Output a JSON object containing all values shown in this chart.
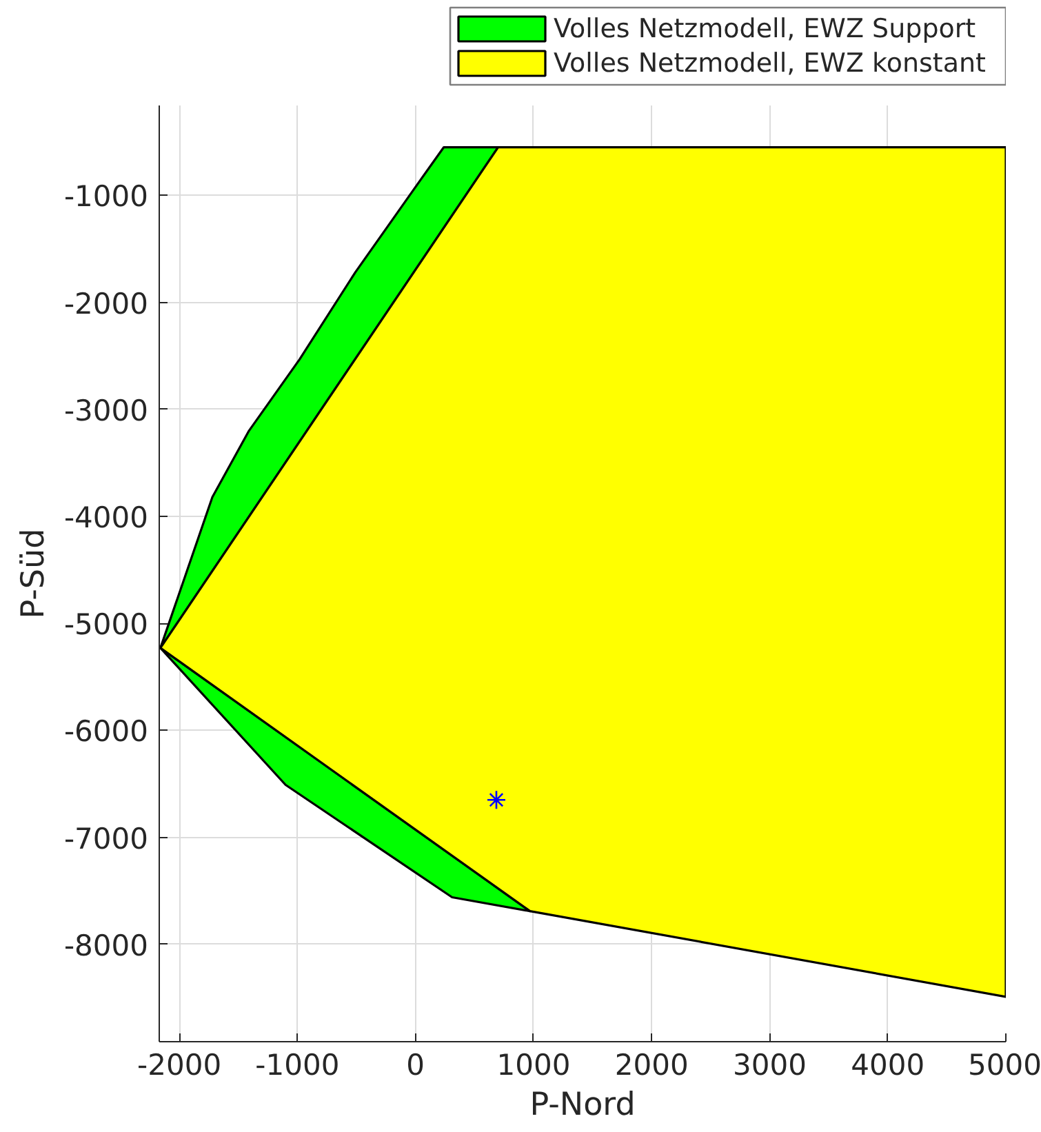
{
  "chart_data": {
    "type": "area",
    "xlabel": "P-Nord",
    "ylabel": "P-Süd",
    "xlim": [
      -2170,
      5000
    ],
    "ylim": [
      -8910,
      -160
    ],
    "xticks": [
      -2000,
      -1000,
      0,
      1000,
      2000,
      3000,
      4000,
      5000
    ],
    "yticks": [
      -8000,
      -7000,
      -6000,
      -5000,
      -4000,
      -3000,
      -2000,
      -1000
    ],
    "grid": true,
    "legend": "top right",
    "series": [
      {
        "name": "Volles Netzmodell, EWZ Support",
        "color": "#00ff00",
        "x": [
          240,
          40,
          -510,
          -980,
          -1410,
          -1720,
          -2160,
          -1100,
          310,
          970,
          -2160,
          700
        ],
        "values": [
          -550,
          -860,
          -1720,
          -2530,
          -3200,
          -3820,
          -5230,
          -6510,
          -7560,
          -7690,
          -5230,
          -550
        ]
      },
      {
        "name": "Volles Netzmodell, EWZ konstant",
        "color": "#ffff00",
        "x": [
          -2160,
          700,
          5000,
          5000,
          970
        ],
        "values": [
          -5230,
          -550,
          -550,
          -8490,
          -7690
        ]
      },
      {
        "type": "scatter",
        "marker": "cross",
        "color": "#0000ff",
        "x": [
          685
        ],
        "values": [
          -6650
        ]
      }
    ]
  }
}
